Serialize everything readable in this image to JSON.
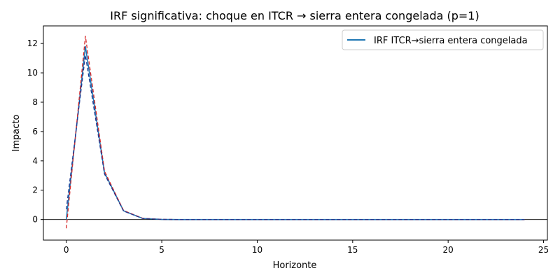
{
  "chart_data": {
    "type": "line",
    "title": "IRF significativa: choque en ITCR → sierra entera congelada (p=1)",
    "xlabel": "Horizonte",
    "ylabel": "Impacto",
    "xlim": [
      -1.2,
      25.2
    ],
    "ylim": [
      -1.4,
      13.2
    ],
    "xticks": [
      0,
      5,
      10,
      15,
      20,
      25
    ],
    "yticks": [
      0,
      2,
      4,
      6,
      8,
      10,
      12
    ],
    "grid": false,
    "zero_line": true,
    "legend": {
      "placement": "top-right",
      "entries": [
        "IRF ITCR→sierra entera congelada"
      ]
    },
    "x": [
      0,
      1,
      2,
      3,
      4,
      5,
      6,
      7,
      8,
      9,
      10,
      11,
      12,
      13,
      14,
      15,
      16,
      17,
      18,
      19,
      20,
      21,
      22,
      23,
      24
    ],
    "series": [
      {
        "name": "IRF ITCR→sierra entera congelada",
        "color": "#1f77b4",
        "style": "solid",
        "values": [
          0,
          11.8,
          3.2,
          0.6,
          0.08,
          0.01,
          0,
          0,
          0,
          0,
          0,
          0,
          0,
          0,
          0,
          0,
          0,
          0,
          0,
          0,
          0,
          0,
          0,
          0,
          0
        ]
      },
      {
        "color": "#d62728",
        "style": "dashed",
        "values": [
          -0.6,
          12.5,
          3.3,
          0.62,
          0.09,
          0.01,
          0,
          0,
          0,
          0,
          0,
          0,
          0,
          0,
          0,
          0,
          0,
          0,
          0,
          0,
          0,
          0,
          0,
          0,
          0
        ]
      },
      {
        "color": "#1f3a93",
        "style": "dashed",
        "values": [
          0.7,
          11.2,
          3.1,
          0.58,
          0.07,
          0.01,
          0,
          0,
          0,
          0,
          0,
          0,
          0,
          0,
          0,
          0,
          0,
          0,
          0,
          0,
          0,
          0,
          0,
          0,
          0
        ]
      }
    ]
  }
}
